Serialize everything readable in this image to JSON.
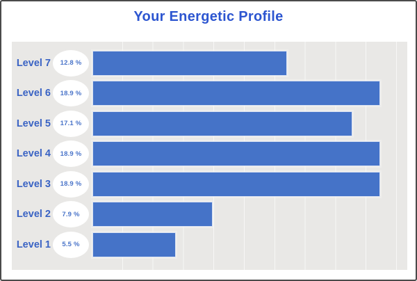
{
  "frame": {
    "border_color": "#4a4a4a",
    "background": "#ffffff"
  },
  "chart_data": {
    "type": "bar",
    "orientation": "horizontal",
    "title": "Your Energetic Profile",
    "categories": [
      "Level 7",
      "Level 6",
      "Level 5",
      "Level 4",
      "Level 3",
      "Level 2",
      "Level 1"
    ],
    "values": [
      12.8,
      18.9,
      17.1,
      18.9,
      18.9,
      7.9,
      5.5
    ],
    "value_labels": [
      "12.8 %",
      "18.9 %",
      "17.1 %",
      "18.9 %",
      "18.9 %",
      "7.9 %",
      "5.5 %"
    ],
    "unit": "%",
    "xlabel": "",
    "ylabel": "",
    "xlim": [
      0,
      20.7
    ],
    "grid": true,
    "gridline_step_percent": 2,
    "legend": false,
    "colors": {
      "bar": "#4573c8",
      "category_label": "#3a63c4",
      "value_label": "#4a74c9",
      "badge_background": "#ffffff",
      "plot_background": "#e9e8e6",
      "title": "#2c55d0"
    }
  }
}
